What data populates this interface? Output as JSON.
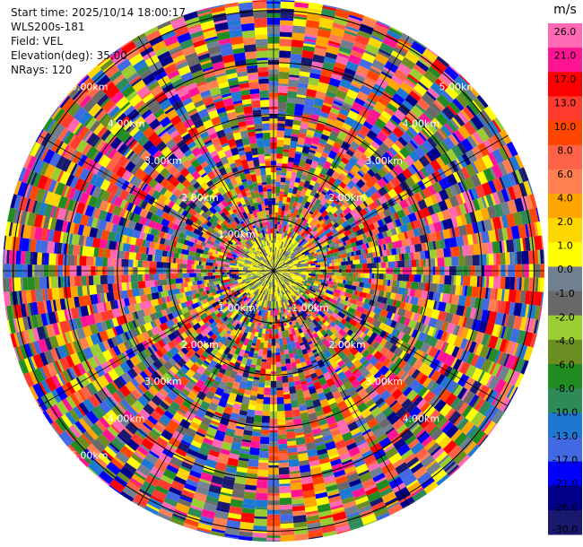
{
  "header": {
    "start_time": "Start time: 2025/10/14 18:00:17",
    "instrument": "WLS200s-181",
    "field": "Field: VEL",
    "elevation": "Elevation(deg): 35.00",
    "nrays": "NRays: 120"
  },
  "chart_data": {
    "type": "heatmap",
    "projection": "polar-ppi",
    "field": "VEL",
    "elevation_deg": 35.0,
    "nrays": 120,
    "range_rings_km": [
      1.0,
      2.0,
      3.0,
      4.0,
      5.0
    ],
    "max_range_km": 5.2,
    "ring_labels": [
      {
        "text": "1.00km",
        "ring_km": 1.0,
        "quadrant": "top-left"
      },
      {
        "text": "1.00km",
        "ring_km": 1.0,
        "quadrant": "bottom-left"
      },
      {
        "text": "1.00km",
        "ring_km": 1.0,
        "quadrant": "bottom-right"
      },
      {
        "text": "2.00km",
        "ring_km": 2.0,
        "quadrant": "top-left"
      },
      {
        "text": "2.00km",
        "ring_km": 2.0,
        "quadrant": "top-right"
      },
      {
        "text": "2.00km",
        "ring_km": 2.0,
        "quadrant": "bottom-left"
      },
      {
        "text": "2.00km",
        "ring_km": 2.0,
        "quadrant": "bottom-right"
      },
      {
        "text": "3.00km",
        "ring_km": 3.0,
        "quadrant": "top-left"
      },
      {
        "text": "3.00km",
        "ring_km": 3.0,
        "quadrant": "top-right"
      },
      {
        "text": "3.00km",
        "ring_km": 3.0,
        "quadrant": "bottom-left"
      },
      {
        "text": "3.00km",
        "ring_km": 3.0,
        "quadrant": "bottom-right"
      },
      {
        "text": "4.00km",
        "ring_km": 4.0,
        "quadrant": "top-left"
      },
      {
        "text": "4.00km",
        "ring_km": 4.0,
        "quadrant": "top-right"
      },
      {
        "text": "4.00km",
        "ring_km": 4.0,
        "quadrant": "bottom-left"
      },
      {
        "text": "4.00km",
        "ring_km": 4.0,
        "quadrant": "bottom-right"
      },
      {
        "text": "5.00km",
        "ring_km": 5.0,
        "quadrant": "top-left"
      },
      {
        "text": "5.00km",
        "ring_km": 5.0,
        "quadrant": "top-right"
      },
      {
        "text": "5.00km",
        "ring_km": 5.0,
        "quadrant": "bottom-left"
      }
    ],
    "colorbar": {
      "unit": "m/s",
      "tick_labels": [
        "26.0",
        "21.0",
        "17.0",
        "13.0",
        "10.0",
        "8.0",
        "6.0",
        "4.0",
        "2.0",
        "1.0",
        "0.0",
        "-1.0",
        "-2.0",
        "-4.0",
        "-6.0",
        "-8.0",
        "-10.0",
        "-13.0",
        "-17.0",
        "-21.0",
        "-26.0",
        "-30.0"
      ],
      "colors": [
        "#ff69b4",
        "#ff1493",
        "#ff0000",
        "#ff3b2f",
        "#ff4500",
        "#ff6347",
        "#ff7f50",
        "#ffa500",
        "#ffd700",
        "#ffff00",
        "#708090",
        "#696969",
        "#9acd32",
        "#6b8e23",
        "#228b22",
        "#2e8b57",
        "#1e78d2",
        "#4169e1",
        "#0000ff",
        "#00008b",
        "#191970"
      ]
    },
    "near_field": {
      "radius_km": 0.75,
      "colors": [
        "#ffff00",
        "#ffd700",
        "#9acd32",
        "#708090",
        "#696969",
        "#ffff00"
      ]
    }
  }
}
